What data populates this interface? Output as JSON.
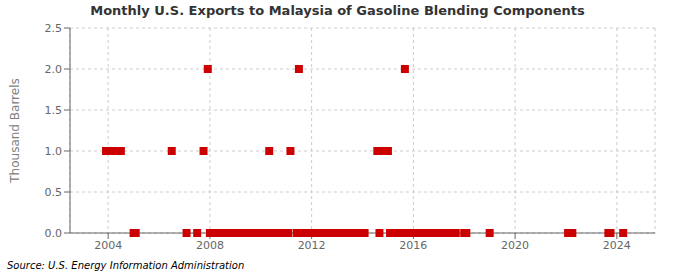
{
  "chart_data": {
    "type": "scatter",
    "title": "Monthly U.S. Exports to Malaysia of Gasoline Blending Components",
    "y_label": "Thousand Barrels",
    "annotation": "Source: U.S. Energy Information Administration",
    "color": "#cc0000",
    "marker": "square",
    "grid": true,
    "xlim": [
      2002.5,
      2025.5
    ],
    "ylim": [
      0.0,
      2.5
    ],
    "xticks": [
      2004,
      2008,
      2012,
      2016,
      2020,
      2024
    ],
    "yticks": [
      {
        "value": 0.0,
        "label": "0.0"
      },
      0.5,
      {
        "value": 1.0,
        "label": "1.0"
      },
      1.5,
      {
        "value": 2.0,
        "label": "2.0"
      },
      2.5
    ],
    "x": [
      2003.917,
      2004.0,
      2004.083,
      2004.167,
      2004.333,
      2004.5,
      2005.0,
      2005.083,
      2006.5,
      2007.083,
      2007.5,
      2007.75,
      2007.917,
      2008.0,
      2008.083,
      2008.167,
      2008.25,
      2008.333,
      2008.417,
      2008.5,
      2008.583,
      2008.667,
      2008.75,
      2008.833,
      2008.917,
      2009.0,
      2009.083,
      2009.167,
      2009.25,
      2009.333,
      2009.417,
      2009.5,
      2009.583,
      2009.667,
      2009.75,
      2009.833,
      2009.917,
      2010.0,
      2010.083,
      2010.167,
      2010.25,
      2010.333,
      2010.5,
      2010.583,
      2010.667,
      2010.75,
      2010.833,
      2010.917,
      2011.0,
      2011.083,
      2011.167,
      2011.417,
      2011.5,
      2011.667,
      2011.75,
      2011.833,
      2011.917,
      2012.0,
      2012.083,
      2012.167,
      2012.25,
      2012.333,
      2012.417,
      2012.5,
      2012.583,
      2012.667,
      2012.75,
      2012.833,
      2012.917,
      2013.0,
      2013.083,
      2013.167,
      2013.25,
      2013.333,
      2013.417,
      2013.5,
      2013.667,
      2013.75,
      2013.917,
      2014.0,
      2014.083,
      2014.583,
      2014.667,
      2014.833,
      2014.917,
      2015.0,
      2015.083,
      2015.167,
      2015.417,
      2015.5,
      2015.667,
      2015.75,
      2015.833,
      2015.917,
      2016.0,
      2016.083,
      2016.167,
      2016.333,
      2016.417,
      2016.583,
      2016.667,
      2016.75,
      2017.0,
      2017.083,
      2017.167,
      2017.25,
      2017.333,
      2017.417,
      2017.5,
      2017.667,
      2018.0,
      2018.083,
      2019.0,
      2022.083,
      2022.25,
      2023.667,
      2023.75,
      2024.25
    ],
    "values": [
      1.0,
      1.0,
      1.0,
      1.0,
      1.0,
      1.0,
      0.0,
      0.0,
      1.0,
      0.0,
      0.0,
      1.0,
      2.0,
      0.0,
      0.0,
      0.0,
      0.0,
      0.0,
      0.0,
      0.0,
      0.0,
      0.0,
      0.0,
      0.0,
      0.0,
      0.0,
      0.0,
      0.0,
      0.0,
      0.0,
      0.0,
      0.0,
      0.0,
      0.0,
      0.0,
      0.0,
      0.0,
      0.0,
      0.0,
      0.0,
      0.0,
      1.0,
      0.0,
      0.0,
      0.0,
      0.0,
      0.0,
      0.0,
      0.0,
      0.0,
      1.0,
      0.0,
      2.0,
      0.0,
      0.0,
      0.0,
      0.0,
      0.0,
      0.0,
      0.0,
      0.0,
      0.0,
      0.0,
      0.0,
      0.0,
      0.0,
      0.0,
      0.0,
      0.0,
      0.0,
      0.0,
      0.0,
      0.0,
      0.0,
      0.0,
      0.0,
      0.0,
      0.0,
      0.0,
      0.0,
      0.0,
      1.0,
      0.0,
      1.0,
      1.0,
      1.0,
      0.0,
      0.0,
      0.0,
      0.0,
      2.0,
      0.0,
      0.0,
      0.0,
      0.0,
      0.0,
      0.0,
      0.0,
      0.0,
      0.0,
      0.0,
      0.0,
      0.0,
      0.0,
      0.0,
      0.0,
      0.0,
      0.0,
      0.0,
      0.0,
      0.0,
      0.0,
      0.0,
      0.0,
      0.0,
      0.0,
      0.0,
      0.0
    ]
  }
}
